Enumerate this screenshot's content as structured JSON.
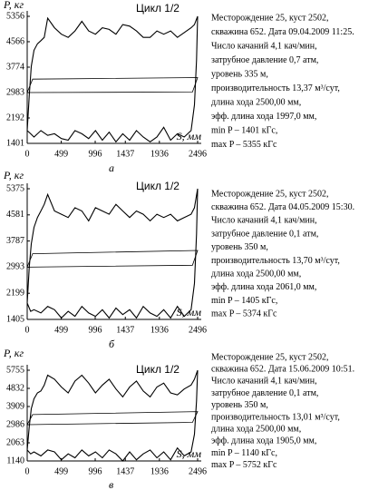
{
  "chart_data": [
    {
      "type": "line",
      "annotation": "Цикл 1/2",
      "caption": "а",
      "ylabel": "P, кг",
      "xlabel": "S, мм",
      "xlim": [
        0,
        2496
      ],
      "ylim": [
        1401,
        5356
      ],
      "xticks": [
        0,
        499,
        996,
        1437,
        1936,
        2496
      ],
      "yticks": [
        1401,
        2192,
        2983,
        3774,
        4566,
        5356
      ],
      "color": "#000000",
      "series": [
        {
          "x": [
            0,
            30,
            60,
            100,
            150,
            200,
            250,
            300,
            400,
            500,
            600,
            700,
            800,
            900,
            1000,
            1100,
            1200,
            1300,
            1400,
            1500,
            1600,
            1700,
            1800,
            1900,
            2000,
            2100,
            2200,
            2300,
            2400,
            2450,
            2496,
            2480,
            2450,
            2400,
            2300,
            2200,
            2100,
            2000,
            1900,
            1800,
            1700,
            1600,
            1500,
            1400,
            1300,
            1200,
            1100,
            1000,
            900,
            800,
            700,
            600,
            500,
            400,
            300,
            200,
            100,
            50,
            0
          ],
          "values": [
            1800,
            2900,
            3800,
            4300,
            4500,
            4600,
            4700,
            5300,
            5000,
            4800,
            4700,
            4900,
            5200,
            4900,
            4800,
            5000,
            4950,
            4800,
            5100,
            5050,
            4900,
            4700,
            4700,
            4900,
            4800,
            4900,
            4700,
            4850,
            5000,
            5100,
            5356,
            4000,
            2600,
            1800,
            1600,
            1700,
            1500,
            1900,
            1600,
            1450,
            1600,
            1800,
            1500,
            1700,
            1450,
            1750,
            1500,
            1800,
            1550,
            1700,
            1800,
            1500,
            1550,
            1700,
            1650,
            1800,
            1600,
            1700,
            1800
          ]
        },
        {
          "x": [
            0,
            80,
            2496,
            2420,
            0
          ],
          "values": [
            2983,
            3400,
            3450,
            3000,
            2983
          ]
        }
      ],
      "text_lines": [
        "Месторождение 25, куст 2502,",
        "скважина 652. Дата 09.04.2009 11:25.",
        "Число качаний 4,1 кач/мин,",
        "затрубное давление 0,7 атм,",
        "уровень 335 м,",
        "производительность 13,37 м³/сут,",
        "длина хода 2500,00 мм,",
        "эфф. длина хода 1997,0 мм,",
        "min P – 1401 кГс,",
        "max P – 5355 кГс"
      ]
    },
    {
      "type": "line",
      "annotation": "Цикл 1/2",
      "caption": "б",
      "ylabel": "P, кг",
      "xlabel": "S, мм",
      "xlim": [
        0,
        2496
      ],
      "ylim": [
        1405,
        5375
      ],
      "xticks": [
        0,
        499,
        996,
        1437,
        1936,
        2496
      ],
      "yticks": [
        1405,
        2199,
        2993,
        3787,
        4581,
        5375
      ],
      "color": "#000000",
      "series": [
        {
          "x": [
            0,
            30,
            60,
            100,
            150,
            200,
            250,
            300,
            400,
            500,
            600,
            700,
            800,
            900,
            1000,
            1100,
            1200,
            1300,
            1400,
            1500,
            1600,
            1700,
            1800,
            1900,
            2000,
            2100,
            2200,
            2300,
            2400,
            2450,
            2496,
            2480,
            2450,
            2400,
            2300,
            2200,
            2100,
            2000,
            1900,
            1800,
            1700,
            1600,
            1500,
            1400,
            1300,
            1200,
            1100,
            1000,
            900,
            800,
            700,
            600,
            500,
            400,
            300,
            200,
            100,
            50,
            0
          ],
          "values": [
            1900,
            3000,
            3700,
            4200,
            4500,
            4700,
            4900,
            5200,
            4700,
            4600,
            4500,
            4800,
            4700,
            4400,
            4800,
            4700,
            4600,
            4900,
            4700,
            4500,
            4700,
            4600,
            4400,
            4600,
            4500,
            4600,
            4400,
            4500,
            4600,
            4800,
            5374,
            4000,
            2500,
            1700,
            1500,
            1800,
            1450,
            1700,
            1500,
            1600,
            1800,
            1450,
            1700,
            1550,
            1750,
            1450,
            1700,
            1500,
            1600,
            1800,
            1500,
            1650,
            1450,
            1700,
            1800,
            1600,
            1700,
            1650,
            1900
          ]
        },
        {
          "x": [
            0,
            80,
            2496,
            2420,
            0
          ],
          "values": [
            2993,
            3400,
            3500,
            3050,
            2993
          ]
        }
      ],
      "text_lines": [
        "Месторождение 25, куст 2502,",
        "скважина 652. Дата 04.05.2009 15:30.",
        "Число качаний 4,1 кач/мин,",
        "затрубное давление 0,1 атм,",
        "уровень 350 м,",
        "производительность 13,70 м³/сут,",
        "длина хода 2500,00 мм,",
        "эфф. длина хода 2061,0 мм,",
        "min P – 1405 кГс,",
        "max P – 5374 кГс"
      ]
    },
    {
      "type": "line",
      "annotation": "Цикл 1/2",
      "caption": "в",
      "ylabel": "P, кг",
      "xlabel": "S, мм",
      "xlim": [
        0,
        2496
      ],
      "ylim": [
        1140,
        5755
      ],
      "xticks": [
        0,
        499,
        996,
        1437,
        1936,
        2496
      ],
      "yticks": [
        1140,
        2063,
        2986,
        3909,
        4832,
        5755
      ],
      "color": "#000000",
      "series": [
        {
          "x": [
            0,
            30,
            60,
            100,
            150,
            200,
            250,
            300,
            400,
            500,
            600,
            700,
            800,
            900,
            1000,
            1100,
            1200,
            1300,
            1400,
            1500,
            1600,
            1700,
            1800,
            1900,
            2000,
            2100,
            2200,
            2300,
            2400,
            2450,
            2496,
            2480,
            2450,
            2400,
            2300,
            2200,
            2100,
            2000,
            1900,
            1800,
            1700,
            1600,
            1500,
            1400,
            1300,
            1200,
            1100,
            1000,
            900,
            800,
            700,
            600,
            500,
            400,
            300,
            200,
            100,
            50,
            0
          ],
          "values": [
            1700,
            2900,
            3800,
            4300,
            4600,
            4700,
            5000,
            5500,
            5300,
            4900,
            4600,
            5200,
            5500,
            5100,
            4600,
            5000,
            5300,
            4800,
            4400,
            4900,
            5200,
            4700,
            4400,
            4900,
            5100,
            4600,
            4500,
            4800,
            5000,
            5300,
            5752,
            4200,
            2500,
            1600,
            1400,
            1800,
            1200,
            1600,
            1300,
            1700,
            1500,
            1200,
            1600,
            1140,
            1500,
            1700,
            1300,
            1600,
            1400,
            1700,
            1300,
            1500,
            1200,
            1600,
            1700,
            1400,
            1600,
            1500,
            1700
          ]
        },
        {
          "x": [
            0,
            80,
            2496,
            2420,
            0
          ],
          "values": [
            2986,
            3500,
            3650,
            3100,
            2986
          ]
        }
      ],
      "text_lines": [
        "Месторождение 25, куст 2502,",
        "скважина 652. Дата 15.06.2009 10:51.",
        "Число качаний 4,1 кач/мин,",
        "затрубное давление 0,1 атм,",
        "уровень 350 м,",
        "производительность 13,01 м³/сут,",
        "длина хода 2500,00 мм,",
        "эфф. длина хода 1905,0 мм,",
        "min P – 1140 кГс,",
        "max P – 5752 кГс"
      ]
    }
  ]
}
